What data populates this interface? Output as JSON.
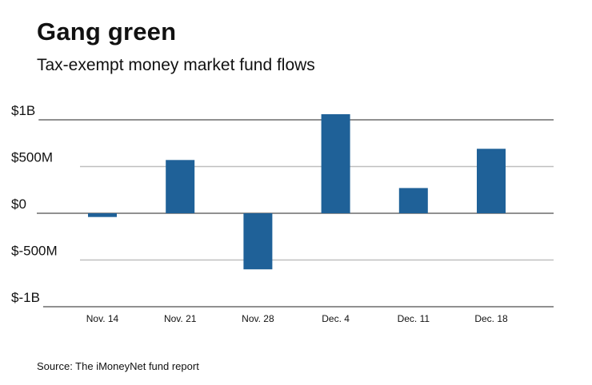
{
  "chart_data": {
    "type": "bar",
    "title": "Gang green",
    "subtitle": "Tax-exempt money market fund flows",
    "source": "Source: The iMoneyNet fund report",
    "categories": [
      "Nov. 14",
      "Nov. 21",
      "Nov. 28",
      "Dec. 4",
      "Dec. 11",
      "Dec. 18"
    ],
    "values": [
      -0.04,
      0.57,
      -0.6,
      1.06,
      0.27,
      0.69
    ],
    "value_units": "billions of dollars",
    "ylim": [
      -1,
      1
    ],
    "yticks": [
      1,
      0.5,
      0,
      -0.5,
      -1
    ],
    "ytick_labels": [
      "$1B",
      "$500M",
      "$0",
      "$-500M",
      "$-1B"
    ],
    "xlabel": "",
    "ylabel": "",
    "grid": true,
    "bar_color": "#1f6198",
    "grid_color": "#bfbfbf",
    "axis_color": "#222222"
  }
}
